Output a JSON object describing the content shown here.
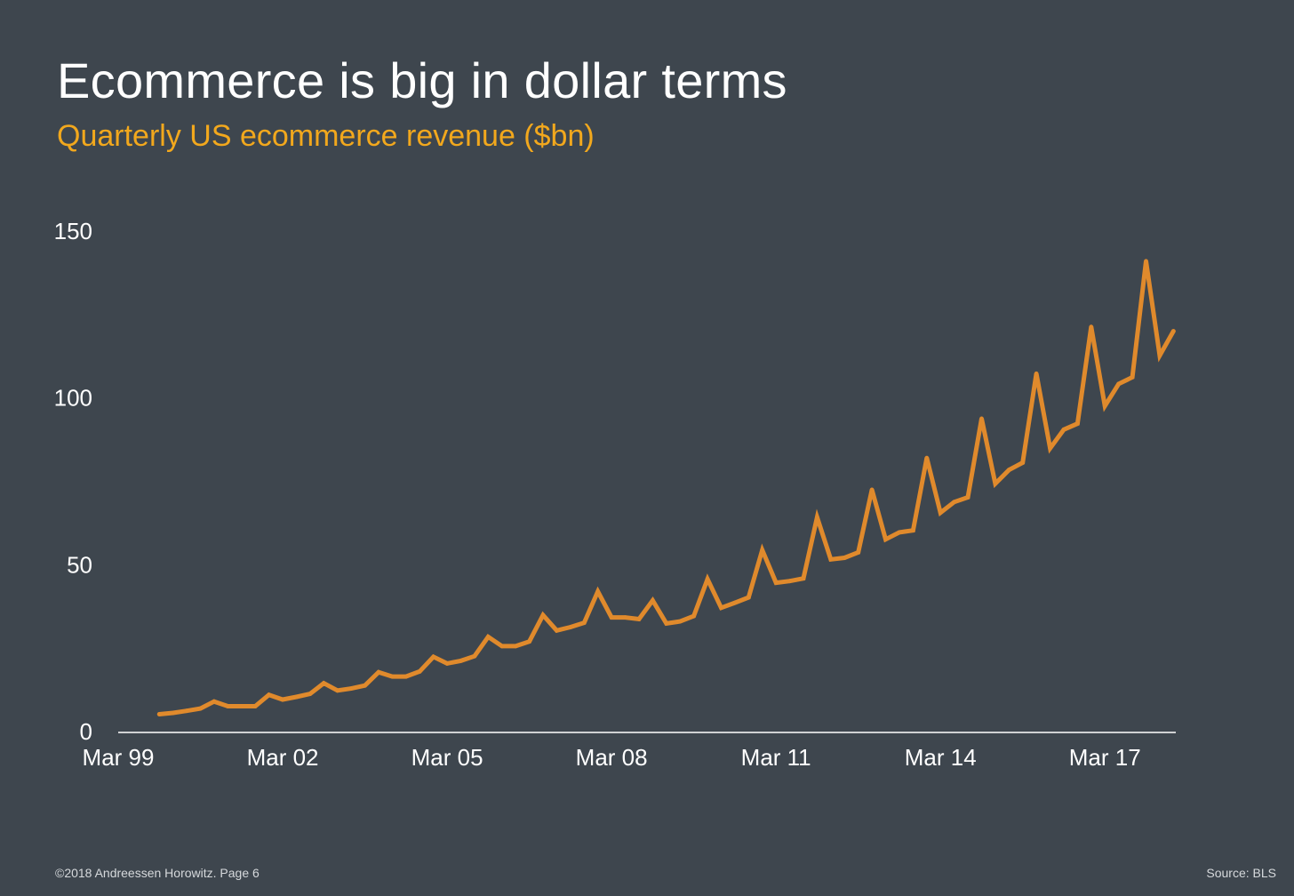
{
  "header": {
    "title": "Ecommerce is big in dollar terms",
    "subtitle": "Quarterly US ecommerce revenue ($bn)"
  },
  "footer": {
    "copyright": "©2018 Andreessen Horowitz. Page 6",
    "source": "Source: BLS"
  },
  "colors": {
    "background": "#3e464e",
    "line": "#e08a2c",
    "subtitle": "#f2a81d",
    "axis": "#ffffff"
  },
  "chart_data": {
    "type": "line",
    "title": "Ecommerce is big in dollar terms",
    "subtitle": "Quarterly US ecommerce revenue ($bn)",
    "xlabel": "",
    "ylabel": "",
    "ylim": [
      0,
      150
    ],
    "yticks": [
      0,
      50,
      100,
      150
    ],
    "xticks": [
      "Mar 99",
      "Mar 02",
      "Mar 05",
      "Mar 08",
      "Mar 11",
      "Mar 14",
      "Mar 17"
    ],
    "grid": false,
    "legend": "none",
    "x_start": "Dec 99",
    "x_end": "Jun 18",
    "series": [
      {
        "name": "",
        "values": [
          5.2,
          5.6,
          6.2,
          6.9,
          9.0,
          7.6,
          7.6,
          7.6,
          11.0,
          9.6,
          10.4,
          11.3,
          14.5,
          12.3,
          12.9,
          13.8,
          17.8,
          16.5,
          16.5,
          18.0,
          22.4,
          20.4,
          21.2,
          22.6,
          28.4,
          25.6,
          25.6,
          27.0,
          34.9,
          30.3,
          31.3,
          32.6,
          42.0,
          34.2,
          34.2,
          33.7,
          39.3,
          32.4,
          33.0,
          34.6,
          45.7,
          37.1,
          38.6,
          40.2,
          54.4,
          44.6,
          45.1,
          45.9,
          64.2,
          51.6,
          52.1,
          53.7,
          72.5,
          57.6,
          59.7,
          60.3,
          82.0,
          65.6,
          68.8,
          70.2,
          93.8,
          74.3,
          78.4,
          80.6,
          107.3,
          84.9,
          90.5,
          92.3,
          121.3,
          97.6,
          104.2,
          106.2,
          141.0,
          112.7,
          120.0
        ]
      }
    ]
  }
}
